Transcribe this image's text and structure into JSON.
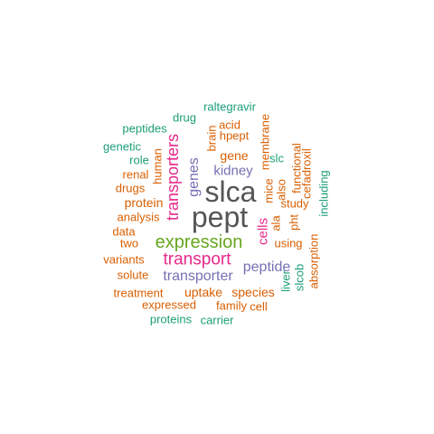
{
  "colors": {
    "orange": "#d95f02",
    "teal": "#1b9e77",
    "purple": "#7570b3",
    "magenta": "#e7298a",
    "green": "#66a61e",
    "gray": "#555555"
  },
  "words": [
    {
      "text": "slca",
      "color": "gray"
    },
    {
      "text": "pept",
      "color": "gray"
    },
    {
      "text": "expression",
      "color": "green"
    },
    {
      "text": "transport",
      "color": "magenta"
    },
    {
      "text": "transporters",
      "color": "magenta"
    },
    {
      "text": "transporter",
      "color": "purple"
    },
    {
      "text": "peptide",
      "color": "purple"
    },
    {
      "text": "genes",
      "color": "purple"
    },
    {
      "text": "kidney",
      "color": "purple"
    },
    {
      "text": "cells",
      "color": "magenta"
    },
    {
      "text": "gene",
      "color": "orange"
    },
    {
      "text": "protein",
      "color": "orange"
    },
    {
      "text": "analysis",
      "color": "orange"
    },
    {
      "text": "uptake",
      "color": "orange"
    },
    {
      "text": "species",
      "color": "orange"
    },
    {
      "text": "expressed",
      "color": "orange"
    },
    {
      "text": "using",
      "color": "orange"
    },
    {
      "text": "study",
      "color": "orange"
    },
    {
      "text": "human",
      "color": "orange"
    },
    {
      "text": "membrane",
      "color": "orange"
    },
    {
      "text": "mice",
      "color": "orange"
    },
    {
      "text": "brain",
      "color": "orange"
    },
    {
      "text": "acid",
      "color": "orange"
    },
    {
      "text": "hpept",
      "color": "orange"
    },
    {
      "text": "drugs",
      "color": "orange"
    },
    {
      "text": "renal",
      "color": "orange"
    },
    {
      "text": "data",
      "color": "orange"
    },
    {
      "text": "two",
      "color": "orange"
    },
    {
      "text": "variants",
      "color": "orange"
    },
    {
      "text": "solute",
      "color": "orange"
    },
    {
      "text": "treatment",
      "color": "orange"
    },
    {
      "text": "family",
      "color": "orange"
    },
    {
      "text": "cell",
      "color": "orange"
    },
    {
      "text": "ala",
      "color": "orange"
    },
    {
      "text": "also",
      "color": "orange"
    },
    {
      "text": "pht",
      "color": "orange"
    },
    {
      "text": "functional",
      "color": "orange"
    },
    {
      "text": "cefadroxil",
      "color": "orange"
    },
    {
      "text": "absorption",
      "color": "orange"
    },
    {
      "text": "raltegravir",
      "color": "teal"
    },
    {
      "text": "drug",
      "color": "teal"
    },
    {
      "text": "peptides",
      "color": "teal"
    },
    {
      "text": "genetic",
      "color": "teal"
    },
    {
      "text": "role",
      "color": "teal"
    },
    {
      "text": "slc",
      "color": "teal"
    },
    {
      "text": "including",
      "color": "teal"
    },
    {
      "text": "liver",
      "color": "teal"
    },
    {
      "text": "slcob",
      "color": "teal"
    },
    {
      "text": "proteins",
      "color": "teal"
    },
    {
      "text": "carrier",
      "color": "teal"
    }
  ]
}
